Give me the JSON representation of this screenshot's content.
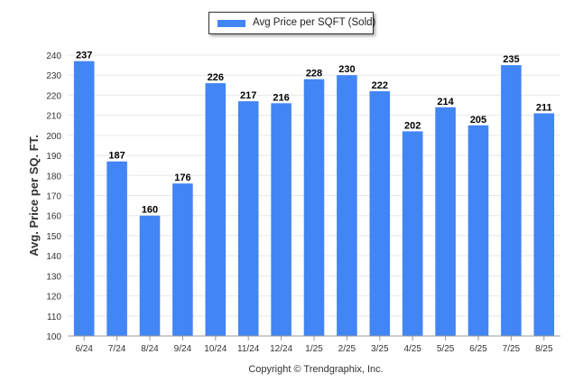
{
  "legend": {
    "label": "Avg Price per SQFT (Sold)"
  },
  "credit": "Copyright © Trendgraphix, Inc.",
  "colors": {
    "bar": "#4285F4",
    "grid": "#e8e8e8",
    "axis": "#333333",
    "label": "#000000"
  },
  "chart_data": {
    "type": "bar",
    "title": "",
    "xlabel": "",
    "ylabel": "Avg. Price per SQ. FT.",
    "ylim": [
      100,
      240
    ],
    "yticks": [
      100,
      110,
      120,
      130,
      140,
      150,
      160,
      170,
      180,
      190,
      200,
      210,
      220,
      230,
      240
    ],
    "grid": true,
    "legend_position": "top-center",
    "categories": [
      "6/24",
      "7/24",
      "8/24",
      "9/24",
      "10/24",
      "11/24",
      "12/24",
      "1/25",
      "2/25",
      "3/25",
      "4/25",
      "5/25",
      "6/25",
      "7/25",
      "8/25"
    ],
    "series": [
      {
        "name": "Avg Price per SQFT (Sold)",
        "values": [
          237,
          187,
          160,
          176,
          226,
          217,
          216,
          228,
          230,
          222,
          202,
          214,
          205,
          235,
          211
        ]
      }
    ]
  }
}
